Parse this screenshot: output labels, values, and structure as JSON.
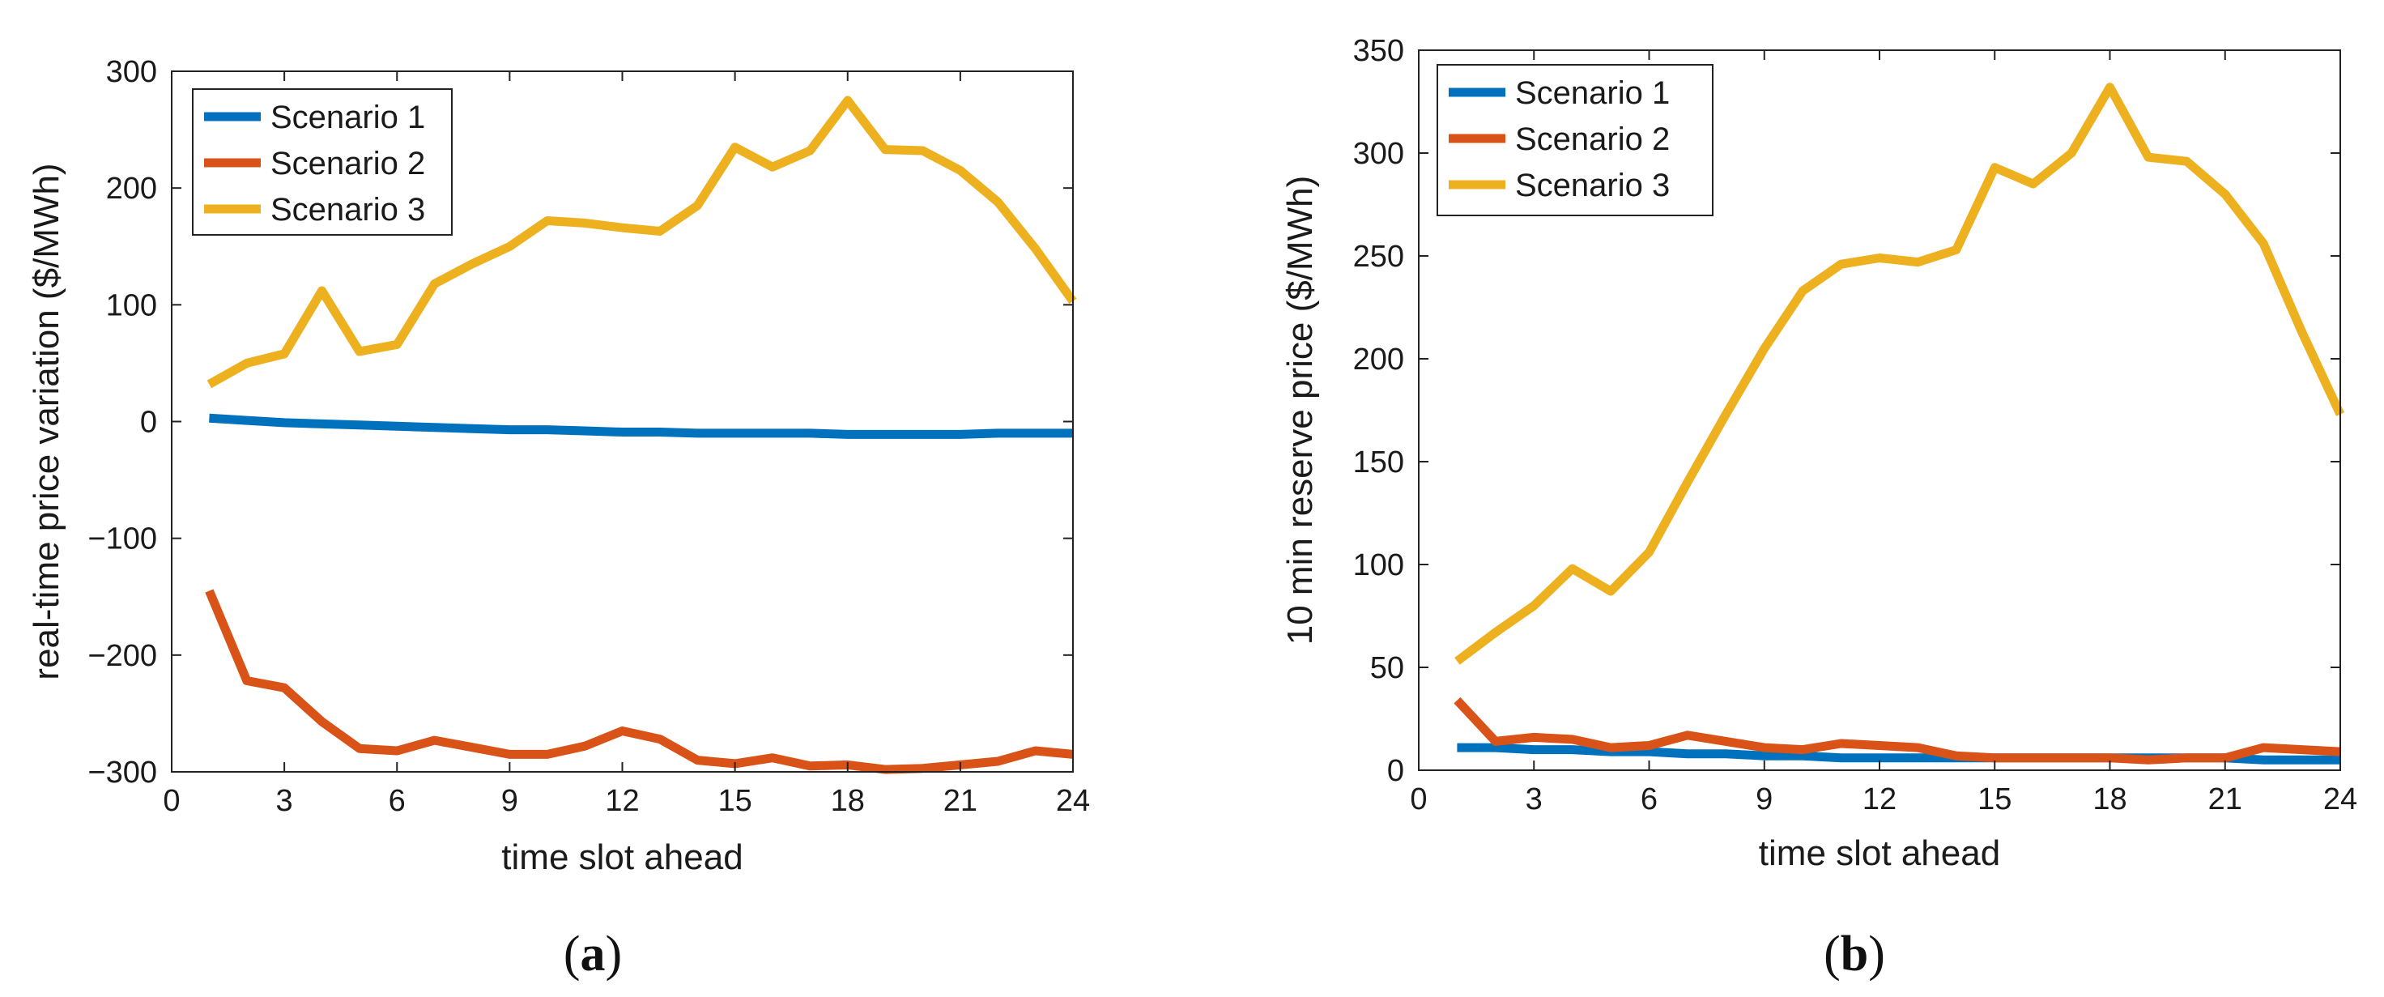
{
  "chart_data": [
    {
      "type": "line",
      "panel_caption": "(a)",
      "caption_letter": "a",
      "xlabel": "time slot ahead",
      "ylabel": "real-time price variation ($/MWh)",
      "xlim": [
        0,
        24
      ],
      "ylim": [
        -300,
        300
      ],
      "xticks": [
        0,
        3,
        6,
        9,
        12,
        15,
        18,
        21,
        24
      ],
      "yticks": [
        -300,
        -200,
        -100,
        0,
        100,
        200,
        300
      ],
      "x": [
        1,
        2,
        3,
        4,
        5,
        6,
        7,
        8,
        9,
        10,
        11,
        12,
        13,
        14,
        15,
        16,
        17,
        18,
        19,
        20,
        21,
        22,
        23,
        24
      ],
      "grid": false,
      "legend_position": "top-left",
      "series": [
        {
          "name": "Scenario 1",
          "color": "#0072BD",
          "values": [
            3,
            1,
            -1,
            -2,
            -3,
            -4,
            -5,
            -6,
            -7,
            -7,
            -8,
            -9,
            -9,
            -10,
            -10,
            -10,
            -10,
            -11,
            -11,
            -11,
            -11,
            -10,
            -10,
            -10
          ]
        },
        {
          "name": "Scenario 2",
          "color": "#D95319",
          "values": [
            -145,
            -222,
            -228,
            -257,
            -280,
            -282,
            -273,
            -279,
            -285,
            -285,
            -278,
            -265,
            -272,
            -290,
            -293,
            -288,
            -295,
            -294,
            -298,
            -297,
            -294,
            -291,
            -282,
            -285
          ]
        },
        {
          "name": "Scenario 3",
          "color": "#EDB120",
          "values": [
            32,
            50,
            58,
            112,
            60,
            66,
            118,
            135,
            150,
            172,
            170,
            166,
            163,
            185,
            235,
            218,
            232,
            275,
            233,
            232,
            215,
            188,
            148,
            103
          ]
        }
      ]
    },
    {
      "type": "line",
      "panel_caption": "(b)",
      "caption_letter": "b",
      "xlabel": "time slot ahead",
      "ylabel": "10 min reserve price ($/MWh)",
      "xlim": [
        0,
        24
      ],
      "ylim": [
        0,
        350
      ],
      "xticks": [
        0,
        3,
        6,
        9,
        12,
        15,
        18,
        21,
        24
      ],
      "yticks": [
        0,
        50,
        100,
        150,
        200,
        250,
        300,
        350
      ],
      "x": [
        1,
        2,
        3,
        4,
        5,
        6,
        7,
        8,
        9,
        10,
        11,
        12,
        13,
        14,
        15,
        16,
        17,
        18,
        19,
        20,
        21,
        22,
        23,
        24
      ],
      "grid": false,
      "legend_position": "top-left",
      "series": [
        {
          "name": "Scenario 1",
          "color": "#0072BD",
          "values": [
            11,
            11,
            10,
            10,
            9,
            9,
            8,
            8,
            7,
            7,
            6,
            6,
            6,
            6,
            6,
            6,
            6,
            6,
            6,
            6,
            6,
            5,
            5,
            5
          ]
        },
        {
          "name": "Scenario 2",
          "color": "#D95319",
          "values": [
            34,
            14,
            16,
            15,
            11,
            12,
            17,
            14,
            11,
            10,
            13,
            12,
            11,
            7,
            6,
            6,
            6,
            6,
            5,
            6,
            6,
            11,
            10,
            9
          ]
        },
        {
          "name": "Scenario 3",
          "color": "#EDB120",
          "values": [
            53,
            67,
            80,
            98,
            87,
            106,
            140,
            173,
            205,
            233,
            246,
            249,
            247,
            253,
            293,
            285,
            300,
            332,
            298,
            296,
            280,
            256,
            213,
            173
          ]
        }
      ]
    }
  ]
}
